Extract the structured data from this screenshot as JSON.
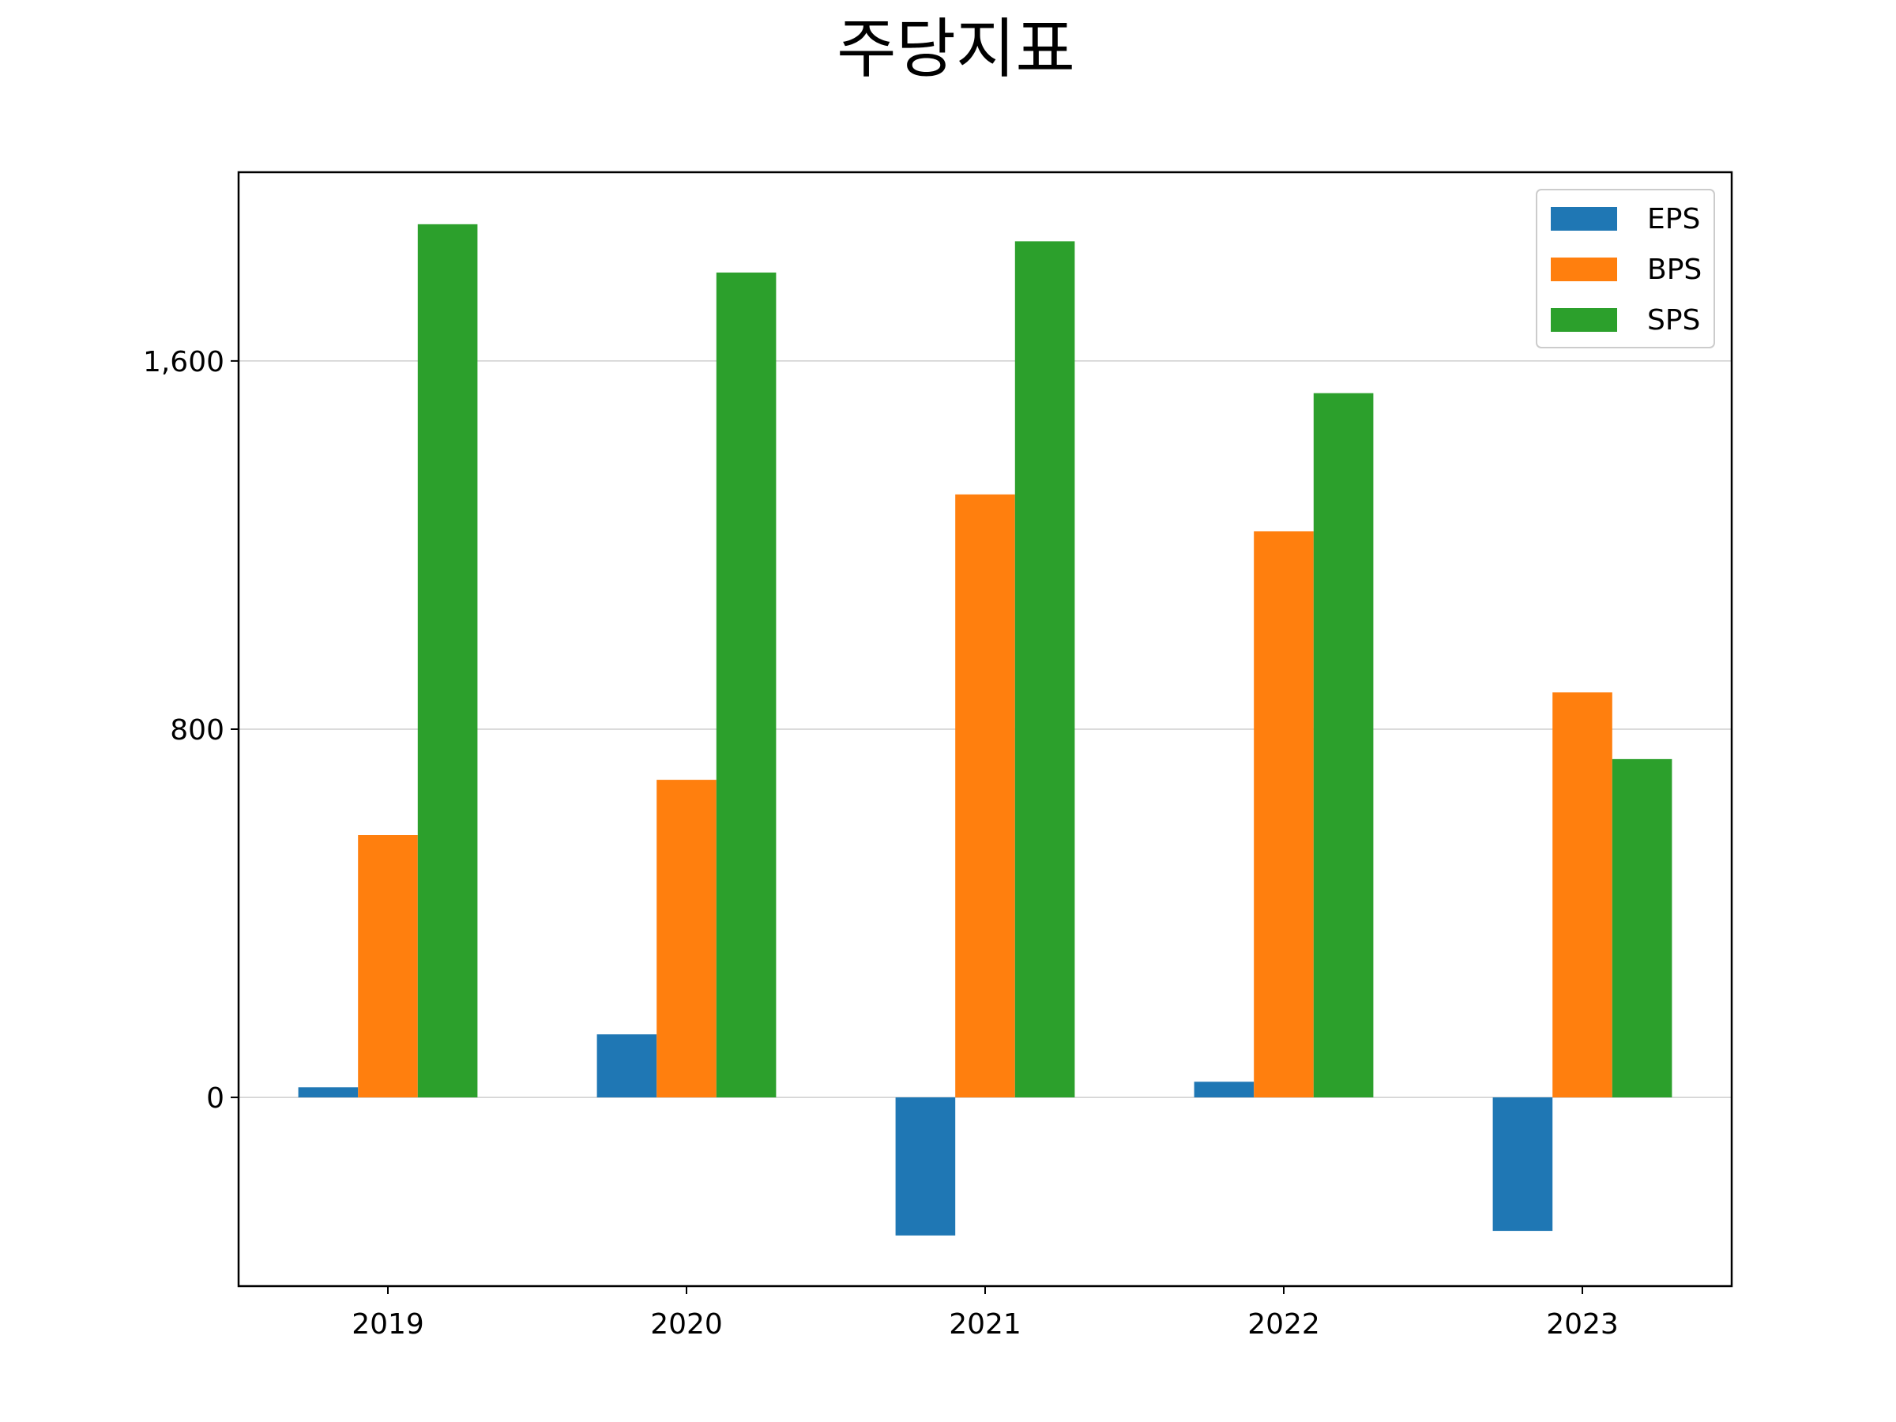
{
  "chart_data": {
    "type": "bar",
    "title": "주당지표",
    "xlabel": "",
    "ylabel": "",
    "categories": [
      "2019",
      "2020",
      "2021",
      "2022",
      "2023"
    ],
    "series": [
      {
        "name": "EPS",
        "color": "#1f77b4",
        "values": [
          22,
          137,
          -300,
          34,
          -290
        ]
      },
      {
        "name": "BPS",
        "color": "#ff7f0e",
        "values": [
          570,
          690,
          1310,
          1230,
          880
        ]
      },
      {
        "name": "SPS",
        "color": "#2ca02c",
        "values": [
          1897,
          1792,
          1860,
          1530,
          735
        ]
      }
    ],
    "ylim": [
      -410,
      2010
    ],
    "yticks": [
      0,
      800,
      1600
    ],
    "ytick_labels": [
      "0",
      "800",
      "1,600"
    ],
    "grid": "y",
    "legend_position": "upper right"
  }
}
